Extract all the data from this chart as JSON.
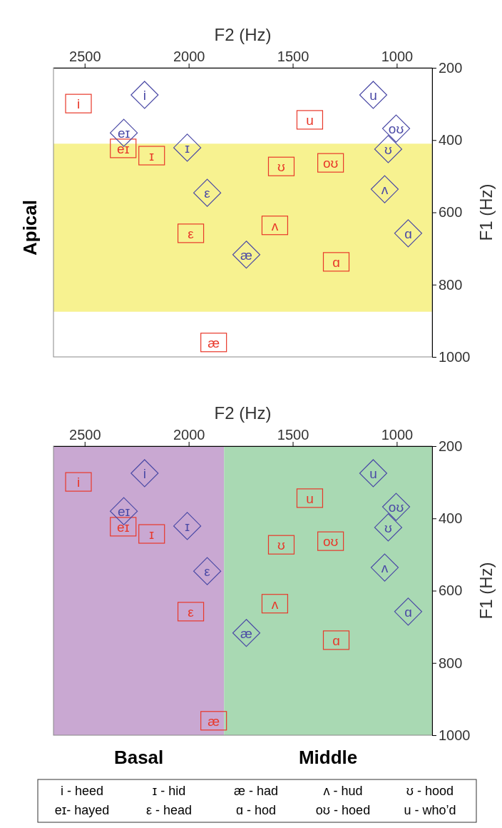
{
  "chart_data": [
    {
      "type": "scatter",
      "xlabel": "F2 (Hz)",
      "ylabel": "F1 (Hz)",
      "xlim": [
        2650,
        830
      ],
      "xticks": [
        2500,
        2000,
        1500,
        1000
      ],
      "ylim": [
        1000,
        200
      ],
      "yticks": [
        200,
        400,
        600,
        800,
        1000
      ],
      "bands": [
        {
          "axis": "y",
          "from": 410,
          "to": 875,
          "label": "Apical",
          "color": "#f7f290"
        }
      ],
      "series": [
        {
          "color": "#e8382a",
          "marker": "square",
          "x": [
            2530,
            2315,
            2178,
            1990,
            1586,
            1555,
            1418,
            1318,
            1291,
            1880
          ],
          "values": [
            299,
            423,
            443,
            658,
            636,
            473,
            344,
            463,
            737,
            960
          ],
          "value_labels": [
            "i",
            "eɪ",
            "ɪ",
            "ε",
            "ʌ",
            "ʊ",
            "u",
            "oʊ",
            "ɑ",
            "æ"
          ]
        },
        {
          "color": "#4b4aa6",
          "marker": "diamond",
          "x": [
            2212,
            2312,
            2007,
            1911,
            1723,
            1113,
            1003,
            1041,
            1058,
            945
          ],
          "values": [
            275,
            380,
            421,
            546,
            717,
            275,
            368,
            425,
            536,
            658
          ],
          "value_labels": [
            "i",
            "eɪ",
            "ɪ",
            "ε",
            "æ",
            "u",
            "oʊ",
            "ʊ",
            "ʌ",
            "ɑ"
          ]
        }
      ]
    },
    {
      "type": "scatter",
      "xlabel": "F2 (Hz)",
      "ylabel": "F1 (Hz)",
      "xlim": [
        2650,
        830
      ],
      "xticks": [
        2500,
        2000,
        1500,
        1000
      ],
      "ylim": [
        1000,
        200
      ],
      "yticks": [
        200,
        400,
        600,
        800,
        1000
      ],
      "bands": [
        {
          "axis": "x",
          "from": 2650,
          "to": 1830,
          "label": "Basal",
          "color": "#c9a8d2"
        },
        {
          "axis": "x",
          "from": 1830,
          "to": 830,
          "label": "Middle",
          "color": "#a9d9b3"
        }
      ],
      "annotations": [
        "i - heed",
        "ɪ - hid",
        "æ - had",
        "ʌ - hud",
        "ʊ - hood",
        "eɪ- hayed",
        "ε - head",
        "ɑ - hod",
        "oʊ - hoed",
        "u - who’d"
      ],
      "series": [
        {
          "color": "#e8382a",
          "marker": "square",
          "x": [
            2530,
            2315,
            2178,
            1990,
            1586,
            1555,
            1418,
            1318,
            1291,
            1880
          ],
          "values": [
            299,
            423,
            443,
            658,
            636,
            473,
            344,
            463,
            737,
            960
          ],
          "value_labels": [
            "i",
            "eɪ",
            "ɪ",
            "ε",
            "ʌ",
            "ʊ",
            "u",
            "oʊ",
            "ɑ",
            "æ"
          ]
        },
        {
          "color": "#4b4aa6",
          "marker": "diamond",
          "x": [
            2212,
            2312,
            2007,
            1911,
            1723,
            1113,
            1003,
            1041,
            1058,
            945
          ],
          "values": [
            275,
            380,
            421,
            546,
            717,
            275,
            368,
            425,
            536,
            658
          ],
          "value_labels": [
            "i",
            "eɪ",
            "ɪ",
            "ε",
            "æ",
            "u",
            "oʊ",
            "ʊ",
            "ʌ",
            "ɑ"
          ]
        }
      ]
    }
  ]
}
